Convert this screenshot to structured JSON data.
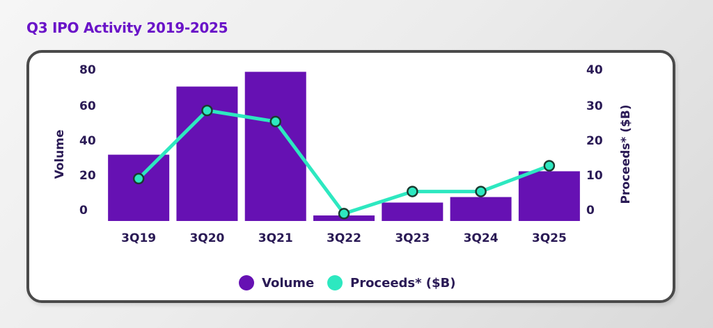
{
  "chart_data": {
    "type": "bar",
    "title": "Q3 IPO Activity 2019-2025",
    "categories": [
      "3Q19",
      "3Q20",
      "3Q21",
      "3Q22",
      "3Q23",
      "3Q24",
      "3Q25"
    ],
    "series": [
      {
        "name": "Volume",
        "type": "bar",
        "axis": "left",
        "color": "#6611b3",
        "values": [
          36,
          73,
          81,
          3,
          10,
          13,
          27
        ]
      },
      {
        "name": "Proceeds* ($B)",
        "type": "line",
        "axis": "right",
        "color": "#2de8c0",
        "values": [
          11.5,
          30,
          27,
          2,
          8,
          8,
          15
        ]
      }
    ],
    "ylabel": "Volume",
    "ylabel_right": "Proceeds* ($B)",
    "ylim": [
      0,
      80
    ],
    "ylim_right": [
      0,
      40
    ],
    "yticks": [
      "0",
      "20",
      "40",
      "60",
      "80"
    ],
    "yticks_right": [
      "0",
      "10",
      "20",
      "30",
      "40"
    ],
    "grid": false,
    "legend_position": "bottom"
  }
}
